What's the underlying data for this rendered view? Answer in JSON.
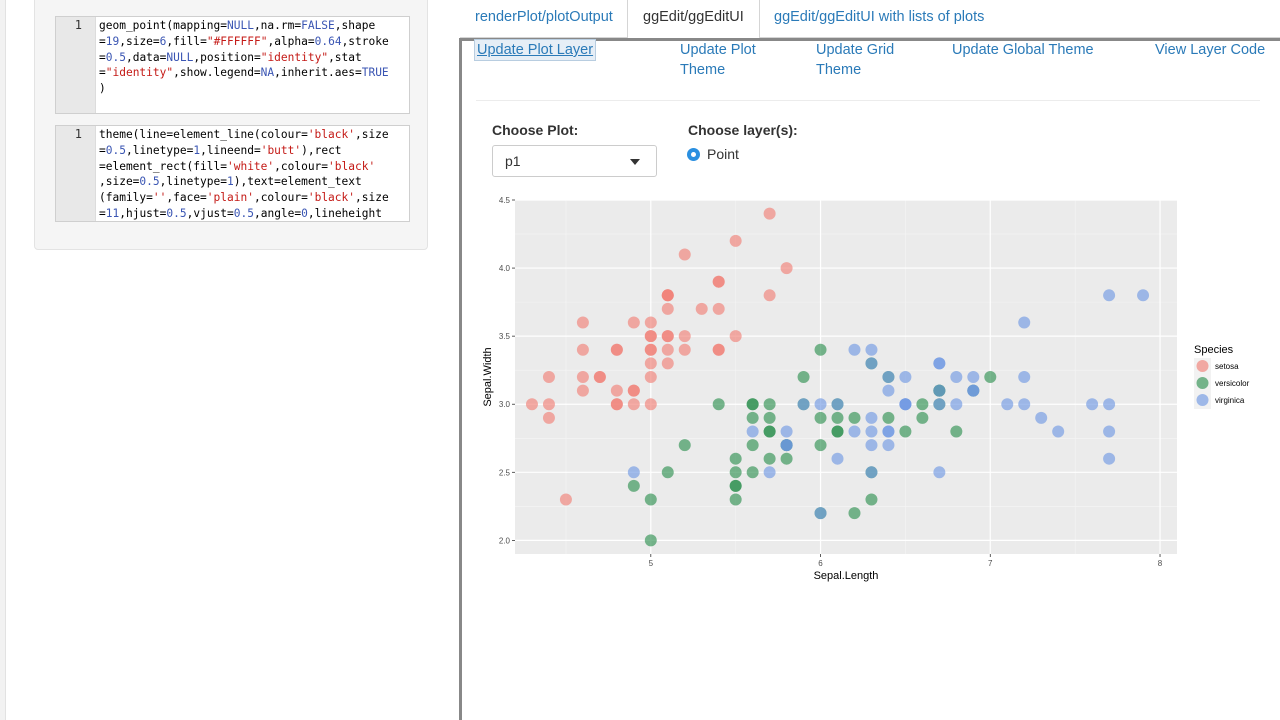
{
  "sidebar": {
    "editor1": {
      "line_number": "1",
      "lines": [
        "geom_point(mapping=NULL,na.rm=FALSE,shape",
        "=19,size=6,fill=\"#FFFFFF\",alpha=0.64,stroke",
        "=0.5,data=NULL,position=\"identity\",stat",
        "=\"identity\",show.legend=NA,inherit.aes=TRUE",
        ")"
      ]
    },
    "editor2": {
      "line_number": "1",
      "lines": [
        "theme(line=element_line(colour='black',size",
        "=0.5,linetype=1,lineend='butt'),rect",
        "=element_rect(fill='white',colour='black'",
        ",size=0.5,linetype=1),text=element_text",
        "(family='',face='plain',colour='black',size",
        "=11,hjust=0.5,vjust=0.5,angle=0,lineheight"
      ]
    }
  },
  "tabs": [
    {
      "label": "renderPlot/plotOutput",
      "active": false
    },
    {
      "label": "ggEdit/ggEditUI",
      "active": true
    },
    {
      "label": "ggEdit/ggEditUI with lists of plots",
      "active": false
    }
  ],
  "subtabs": [
    {
      "label": "Update Plot Layer",
      "active": true
    },
    {
      "label": "Update Plot\nTheme",
      "active": false
    },
    {
      "label": "Update Grid\nTheme",
      "active": false
    },
    {
      "label": "Update Global Theme",
      "active": false
    },
    {
      "label": "View Layer Code",
      "active": false
    }
  ],
  "controls": {
    "choose_plot_label": "Choose Plot:",
    "choose_plot_value": "p1",
    "choose_layer_label": "Choose layer(s):",
    "layer_option": "Point"
  },
  "colors": {
    "setosa": "#F17F76",
    "versicolor": "#2E9050",
    "virginica": "#6F97E3",
    "panel_bg": "#EBEBEB",
    "link": "#2A7AB8"
  },
  "chart_data": {
    "type": "scatter",
    "xlabel": "Sepal.Length",
    "ylabel": "Sepal.Width",
    "xlim": [
      4.2,
      8.1
    ],
    "ylim": [
      1.9,
      4.5
    ],
    "x_ticks": [
      5,
      6,
      7,
      8
    ],
    "y_ticks": [
      2.0,
      2.5,
      3.0,
      3.5,
      4.0,
      4.5
    ],
    "legend_title": "Species",
    "legend_position": "right",
    "series": [
      {
        "name": "setosa",
        "points": [
          [
            5.1,
            3.5
          ],
          [
            4.9,
            3.0
          ],
          [
            4.7,
            3.2
          ],
          [
            4.6,
            3.1
          ],
          [
            5.0,
            3.6
          ],
          [
            5.4,
            3.9
          ],
          [
            4.6,
            3.4
          ],
          [
            5.0,
            3.4
          ],
          [
            4.4,
            2.9
          ],
          [
            4.9,
            3.1
          ],
          [
            5.4,
            3.7
          ],
          [
            4.8,
            3.4
          ],
          [
            4.8,
            3.0
          ],
          [
            4.3,
            3.0
          ],
          [
            5.8,
            4.0
          ],
          [
            5.7,
            4.4
          ],
          [
            5.4,
            3.9
          ],
          [
            5.1,
            3.5
          ],
          [
            5.7,
            3.8
          ],
          [
            5.1,
            3.8
          ],
          [
            5.4,
            3.4
          ],
          [
            5.1,
            3.7
          ],
          [
            4.6,
            3.6
          ],
          [
            5.1,
            3.3
          ],
          [
            4.8,
            3.4
          ],
          [
            5.0,
            3.0
          ],
          [
            5.0,
            3.4
          ],
          [
            5.2,
            3.5
          ],
          [
            5.2,
            3.4
          ],
          [
            4.7,
            3.2
          ],
          [
            4.8,
            3.1
          ],
          [
            5.4,
            3.4
          ],
          [
            5.2,
            4.1
          ],
          [
            5.5,
            4.2
          ],
          [
            4.9,
            3.1
          ],
          [
            5.0,
            3.2
          ],
          [
            5.5,
            3.5
          ],
          [
            4.9,
            3.6
          ],
          [
            4.4,
            3.0
          ],
          [
            5.1,
            3.4
          ],
          [
            5.0,
            3.5
          ],
          [
            4.5,
            2.3
          ],
          [
            4.4,
            3.2
          ],
          [
            5.0,
            3.5
          ],
          [
            5.1,
            3.8
          ],
          [
            4.8,
            3.0
          ],
          [
            5.1,
            3.8
          ],
          [
            4.6,
            3.2
          ],
          [
            5.3,
            3.7
          ],
          [
            5.0,
            3.3
          ]
        ]
      },
      {
        "name": "versicolor",
        "points": [
          [
            7.0,
            3.2
          ],
          [
            6.4,
            3.2
          ],
          [
            6.9,
            3.1
          ],
          [
            5.5,
            2.3
          ],
          [
            6.5,
            2.8
          ],
          [
            5.7,
            2.8
          ],
          [
            6.3,
            3.3
          ],
          [
            4.9,
            2.4
          ],
          [
            6.6,
            2.9
          ],
          [
            5.2,
            2.7
          ],
          [
            5.0,
            2.0
          ],
          [
            5.9,
            3.0
          ],
          [
            6.0,
            2.2
          ],
          [
            6.1,
            2.9
          ],
          [
            5.6,
            2.9
          ],
          [
            6.7,
            3.1
          ],
          [
            5.6,
            3.0
          ],
          [
            5.8,
            2.7
          ],
          [
            6.2,
            2.2
          ],
          [
            5.6,
            2.5
          ],
          [
            5.9,
            3.2
          ],
          [
            6.1,
            2.8
          ],
          [
            6.3,
            2.5
          ],
          [
            6.1,
            2.8
          ],
          [
            6.4,
            2.9
          ],
          [
            6.6,
            3.0
          ],
          [
            6.8,
            2.8
          ],
          [
            6.7,
            3.0
          ],
          [
            6.0,
            2.9
          ],
          [
            5.7,
            2.6
          ],
          [
            5.5,
            2.4
          ],
          [
            5.5,
            2.4
          ],
          [
            5.8,
            2.7
          ],
          [
            6.0,
            2.7
          ],
          [
            5.4,
            3.0
          ],
          [
            6.0,
            3.4
          ],
          [
            6.7,
            3.1
          ],
          [
            6.3,
            2.3
          ],
          [
            5.6,
            3.0
          ],
          [
            5.5,
            2.5
          ],
          [
            5.5,
            2.6
          ],
          [
            6.1,
            3.0
          ],
          [
            5.8,
            2.6
          ],
          [
            5.0,
            2.3
          ],
          [
            5.6,
            2.7
          ],
          [
            5.7,
            3.0
          ],
          [
            5.7,
            2.9
          ],
          [
            6.2,
            2.9
          ],
          [
            5.1,
            2.5
          ],
          [
            5.7,
            2.8
          ]
        ]
      },
      {
        "name": "virginica",
        "points": [
          [
            6.3,
            3.3
          ],
          [
            5.8,
            2.7
          ],
          [
            7.1,
            3.0
          ],
          [
            6.3,
            2.9
          ],
          [
            6.5,
            3.0
          ],
          [
            7.6,
            3.0
          ],
          [
            4.9,
            2.5
          ],
          [
            7.3,
            2.9
          ],
          [
            6.7,
            2.5
          ],
          [
            7.2,
            3.6
          ],
          [
            6.5,
            3.2
          ],
          [
            6.4,
            2.7
          ],
          [
            6.8,
            3.0
          ],
          [
            5.7,
            2.5
          ],
          [
            5.8,
            2.8
          ],
          [
            6.4,
            3.2
          ],
          [
            6.5,
            3.0
          ],
          [
            7.7,
            3.8
          ],
          [
            7.7,
            2.6
          ],
          [
            6.0,
            2.2
          ],
          [
            6.9,
            3.2
          ],
          [
            5.6,
            2.8
          ],
          [
            7.7,
            2.8
          ],
          [
            6.3,
            2.7
          ],
          [
            6.7,
            3.3
          ],
          [
            7.2,
            3.2
          ],
          [
            6.2,
            2.8
          ],
          [
            6.1,
            3.0
          ],
          [
            6.4,
            2.8
          ],
          [
            7.2,
            3.0
          ],
          [
            7.4,
            2.8
          ],
          [
            7.9,
            3.8
          ],
          [
            6.4,
            2.8
          ],
          [
            6.3,
            2.8
          ],
          [
            6.1,
            2.6
          ],
          [
            7.7,
            3.0
          ],
          [
            6.3,
            3.4
          ],
          [
            6.4,
            3.1
          ],
          [
            6.0,
            3.0
          ],
          [
            6.9,
            3.1
          ],
          [
            6.7,
            3.1
          ],
          [
            6.9,
            3.1
          ],
          [
            5.8,
            2.7
          ],
          [
            6.8,
            3.2
          ],
          [
            6.7,
            3.3
          ],
          [
            6.7,
            3.0
          ],
          [
            6.3,
            2.5
          ],
          [
            6.5,
            3.0
          ],
          [
            6.2,
            3.4
          ],
          [
            5.9,
            3.0
          ]
        ]
      }
    ]
  }
}
